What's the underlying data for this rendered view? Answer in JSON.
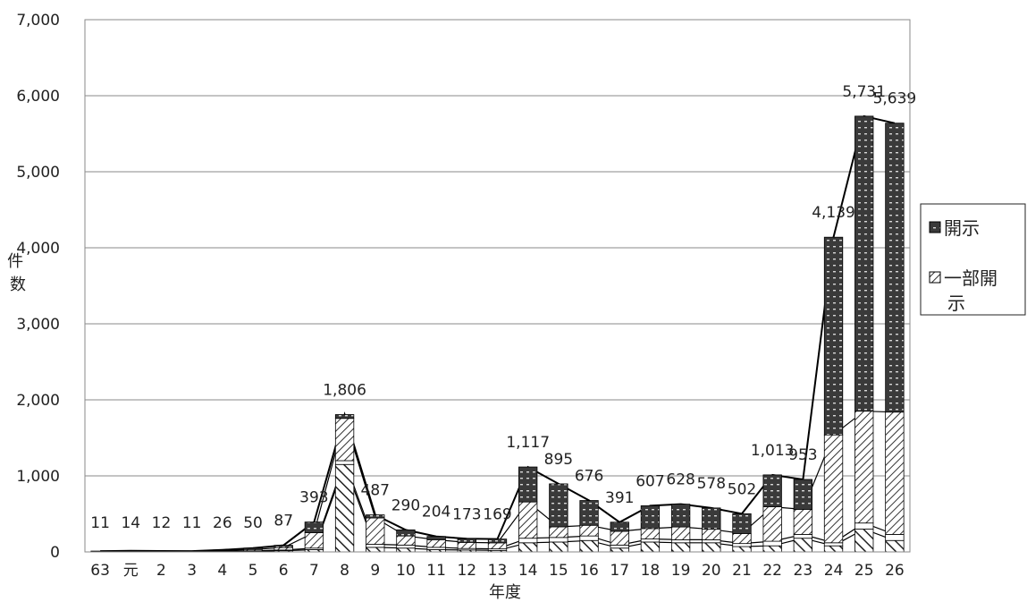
{
  "chart_data": {
    "type": "bar",
    "title": "",
    "xlabel": "年度",
    "ylabel": "件数",
    "ylim": [
      0,
      7000
    ],
    "y_ticks": [
      "0",
      "1,000",
      "2,000",
      "3,000",
      "4,000",
      "5,000",
      "6,000",
      "7,000"
    ],
    "categories": [
      "63",
      "元",
      "2",
      "3",
      "4",
      "5",
      "6",
      "7",
      "8",
      "9",
      "10",
      "11",
      "12",
      "13",
      "14",
      "15",
      "16",
      "17",
      "18",
      "19",
      "20",
      "21",
      "22",
      "23",
      "24",
      "25",
      "26"
    ],
    "totals": [
      11,
      14,
      12,
      11,
      26,
      50,
      87,
      393,
      1806,
      487,
      290,
      204,
      173,
      169,
      1117,
      895,
      676,
      391,
      607,
      628,
      578,
      502,
      1013,
      953,
      4139,
      5731,
      5639
    ],
    "total_labels": [
      "11",
      "14",
      "12",
      "11",
      "26",
      "50",
      "87",
      "393",
      "1,806",
      "487",
      "290",
      "204",
      "173",
      "169",
      "1,117",
      "895",
      "676",
      "391",
      "607",
      "628",
      "578",
      "502",
      "1,013",
      "953",
      "4,139",
      "5,731",
      "5,639"
    ],
    "series": [
      {
        "name": "",
        "pattern": "diag-thick",
        "values": [
          2,
          3,
          3,
          2,
          5,
          8,
          15,
          30,
          1150,
          60,
          50,
          30,
          25,
          20,
          120,
          130,
          150,
          50,
          130,
          120,
          120,
          70,
          80,
          180,
          80,
          300,
          150
        ]
      },
      {
        "name": "",
        "pattern": "plain",
        "values": [
          1,
          1,
          1,
          1,
          3,
          6,
          10,
          20,
          50,
          40,
          40,
          30,
          20,
          20,
          60,
          60,
          60,
          40,
          40,
          40,
          40,
          40,
          60,
          50,
          40,
          80,
          80
        ]
      },
      {
        "name": "一部開示",
        "pattern": "diag-thin",
        "values": [
          4,
          5,
          4,
          4,
          10,
          18,
          32,
          203,
          556,
          347,
          120,
          100,
          80,
          79,
          477,
          140,
          140,
          181,
          137,
          168,
          138,
          132,
          453,
          330,
          1419,
          1471,
          1609
        ]
      },
      {
        "name": "開示",
        "pattern": "dark-dots",
        "values": [
          4,
          5,
          4,
          4,
          8,
          18,
          30,
          140,
          50,
          40,
          80,
          44,
          48,
          50,
          460,
          565,
          326,
          120,
          300,
          300,
          280,
          260,
          420,
          393,
          2600,
          3880,
          3800
        ]
      }
    ],
    "legend": [
      "開示",
      "一部開示"
    ],
    "legend_position": "right",
    "grid": "horizontal"
  },
  "colors": {
    "dark_fill": "#3a3a3a",
    "line": "#000000",
    "grid": "#8a8a8a",
    "background": "#ffffff"
  }
}
